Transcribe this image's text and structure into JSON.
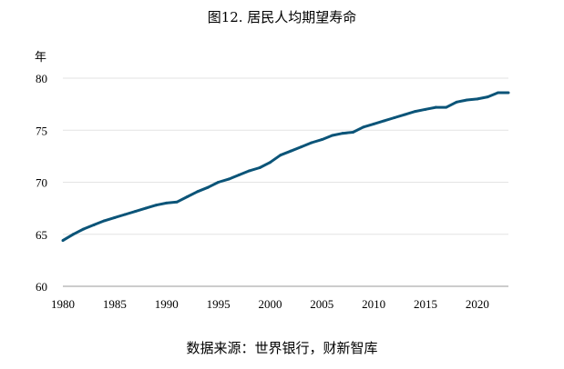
{
  "chart_data": {
    "type": "line",
    "title": "图12. 居民人均期望寿命",
    "ylabel": "年",
    "xlabel": "",
    "source": "数据来源：世界银行，财新智库",
    "xlim": [
      1980,
      2023
    ],
    "ylim": [
      60,
      80
    ],
    "xticks": [
      1980,
      1985,
      1990,
      1995,
      2000,
      2005,
      2010,
      2015,
      2020
    ],
    "yticks": [
      60,
      65,
      70,
      75,
      80
    ],
    "grid": "horizontal",
    "color": "#0b5478",
    "x": [
      1980,
      1981,
      1982,
      1983,
      1984,
      1985,
      1986,
      1987,
      1988,
      1989,
      1990,
      1991,
      1992,
      1993,
      1994,
      1995,
      1996,
      1997,
      1998,
      1999,
      2000,
      2001,
      2002,
      2003,
      2004,
      2005,
      2006,
      2007,
      2008,
      2009,
      2010,
      2011,
      2012,
      2013,
      2014,
      2015,
      2016,
      2017,
      2018,
      2019,
      2020,
      2021,
      2022,
      2023
    ],
    "y": [
      64.4,
      65.0,
      65.5,
      65.9,
      66.3,
      66.6,
      66.9,
      67.2,
      67.5,
      67.8,
      68.0,
      68.1,
      68.6,
      69.1,
      69.5,
      70.0,
      70.3,
      70.7,
      71.1,
      71.4,
      71.9,
      72.6,
      73.0,
      73.4,
      73.8,
      74.1,
      74.5,
      74.7,
      74.8,
      75.3,
      75.6,
      75.9,
      76.2,
      76.5,
      76.8,
      77.0,
      77.2,
      77.2,
      77.7,
      77.9,
      78.0,
      78.2,
      78.6,
      78.6
    ]
  }
}
